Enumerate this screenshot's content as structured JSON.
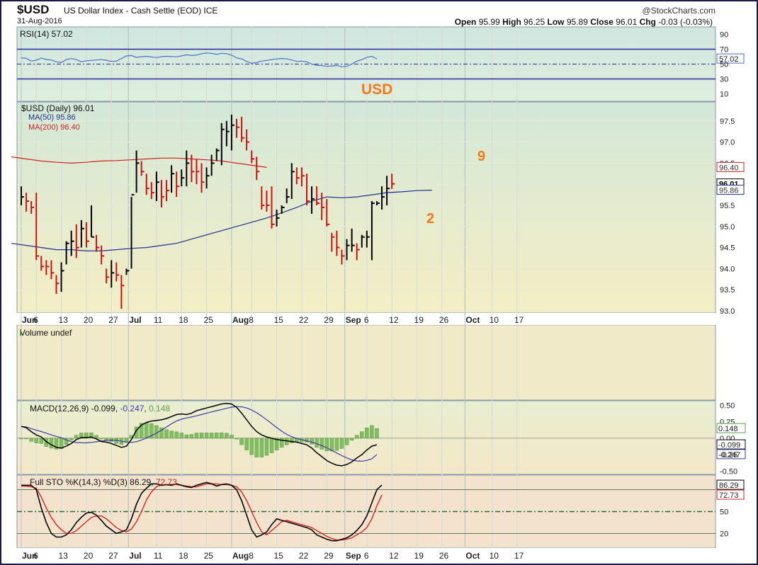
{
  "header": {
    "symbol": "$USD",
    "name": "US Dollar Index - Cash Settle (EOD) ICE",
    "date": "31-Aug-2016",
    "watermark": "@StockCharts.com",
    "open_label": "Open",
    "open": "95.99",
    "high_label": "High",
    "high": "96.25",
    "low_label": "Low",
    "low": "95.89",
    "close_label": "Close",
    "close": "96.01",
    "chg_label": "Chg",
    "chg": "-0.03 (-0.03%)"
  },
  "colors": {
    "up_bar": "#000000",
    "down_bar": "#cc1111",
    "ma50": "#1f2f8f",
    "ma200": "#cc2222",
    "rsi_line": "#4a6fc8",
    "annotation": "#f07a1a",
    "hist": "#7fbf5f",
    "frame": "#1a1a4a"
  },
  "chart_data": [
    {
      "type": "line",
      "title": "RSI(14) 57.02",
      "series": [
        {
          "name": "RSI(14)",
          "last": "57.02",
          "values": [
            58.5,
            57.8,
            54.0,
            55.2,
            58.0,
            56.2,
            55.4,
            53.0,
            52.0,
            56.0,
            57.5,
            56.0,
            53.0,
            54.5,
            55.0,
            55.5,
            56.0,
            55.2,
            53.5,
            54.0,
            57.5,
            61.0,
            61.5,
            59.0,
            60.0,
            60.5,
            59.5,
            58.8,
            60.0,
            60.5,
            60.2,
            59.8,
            61.0,
            62.5,
            61.5,
            62.0,
            64.0,
            65.0,
            64.5,
            63.0,
            64.5,
            64.0,
            62.0,
            58.5,
            57.0,
            53.5,
            51.0,
            52.0,
            54.0,
            55.0,
            56.0,
            57.0,
            57.5,
            57.0,
            55.5,
            53.5,
            54.0,
            53.0,
            50.0,
            48.5,
            48.0,
            47.0,
            47.5,
            48.0,
            46.5,
            47.0,
            50.0,
            54.0,
            56.0,
            59.0,
            60.5,
            57.02
          ]
        }
      ],
      "reference_lines": [
        70,
        50,
        30
      ],
      "y_ticks": [
        "90",
        "70",
        "57.02",
        "50",
        "30",
        "10"
      ],
      "ylim": [
        0,
        100
      ]
    },
    {
      "type": "bar",
      "title": "$USD (Daily) 96.01",
      "annotations": [
        "USD",
        "9",
        "2"
      ],
      "x_ticks": [
        "Jun",
        "6",
        "13",
        "20",
        "27",
        "Jul",
        "11",
        "18",
        "25",
        "Aug",
        "8",
        "15",
        "22",
        "29",
        "Sep",
        "6",
        "12",
        "19",
        "26",
        "Oct",
        "10",
        "17"
      ],
      "y_ticks": [
        "97.5",
        "97.0",
        "96.5",
        "96.0",
        "95.5",
        "95.0",
        "94.5",
        "94.0",
        "93.5",
        "93.0"
      ],
      "ylim": [
        92.95,
        97.95
      ],
      "series": [
        {
          "name": "MA(50) 95.86",
          "values": [
            94.6,
            94.55,
            94.5,
            94.45,
            94.45,
            94.42,
            94.42,
            94.45,
            94.48,
            94.5,
            94.55,
            94.6,
            94.7,
            94.8,
            94.9,
            95.0,
            95.1,
            95.2,
            95.32,
            95.45,
            95.6,
            95.7,
            95.68,
            95.7,
            95.75,
            95.8,
            95.82,
            95.85,
            95.86
          ]
        },
        {
          "name": "MA(200) 96.40",
          "values": [
            96.65,
            96.6,
            96.55,
            96.52,
            96.5,
            96.52,
            96.55,
            96.56,
            96.58,
            96.6,
            96.62,
            96.62,
            96.6,
            96.58,
            96.55,
            96.5,
            96.45,
            96.4
          ]
        },
        {
          "name": "$USD (Daily)",
          "ohlc_hlc": [
            [
              95.95,
              95.5,
              95.7,
              1
            ],
            [
              95.8,
              95.35,
              95.6,
              0
            ],
            [
              95.6,
              95.3,
              95.45,
              0
            ],
            [
              95.8,
              94.2,
              94.3,
              0
            ],
            [
              94.3,
              93.95,
              94.05,
              0
            ],
            [
              94.2,
              93.85,
              94.05,
              0
            ],
            [
              94.2,
              93.75,
              93.9,
              0
            ],
            [
              93.85,
              93.4,
              93.65,
              0
            ],
            [
              94.15,
              93.45,
              93.95,
              1
            ],
            [
              94.65,
              94.1,
              94.6,
              1
            ],
            [
              94.9,
              94.3,
              94.65,
              1
            ],
            [
              95.05,
              94.25,
              94.5,
              0
            ],
            [
              95.15,
              94.5,
              94.95,
              1
            ],
            [
              95.1,
              94.5,
              94.65,
              0
            ],
            [
              95.5,
              94.75,
              94.75,
              1
            ],
            [
              94.8,
              94.4,
              94.5,
              0
            ],
            [
              94.55,
              94.1,
              94.3,
              0
            ],
            [
              94.0,
              93.65,
              93.8,
              0
            ],
            [
              94.2,
              93.55,
              93.9,
              1
            ],
            [
              94.15,
              93.7,
              93.85,
              0
            ],
            [
              93.85,
              93.05,
              93.6,
              0
            ],
            [
              94.0,
              93.85,
              93.95,
              1
            ],
            [
              95.7,
              94.0,
              95.75,
              1
            ],
            [
              96.8,
              95.8,
              96.5,
              1
            ],
            [
              96.55,
              96.2,
              96.3,
              0
            ],
            [
              96.25,
              95.75,
              95.9,
              0
            ],
            [
              96.05,
              95.65,
              95.8,
              0
            ],
            [
              96.3,
              95.6,
              96.05,
              1
            ],
            [
              96.1,
              95.45,
              95.7,
              0
            ],
            [
              96.1,
              95.6,
              95.85,
              0
            ],
            [
              96.45,
              95.8,
              96.25,
              1
            ],
            [
              96.3,
              95.7,
              95.95,
              0
            ],
            [
              96.35,
              95.95,
              96.15,
              1
            ],
            [
              96.8,
              95.95,
              96.5,
              1
            ],
            [
              96.7,
              96.05,
              96.3,
              0
            ],
            [
              96.6,
              96.0,
              96.3,
              0
            ],
            [
              96.5,
              95.8,
              96.05,
              0
            ],
            [
              96.4,
              95.9,
              96.2,
              1
            ],
            [
              96.7,
              96.2,
              96.5,
              1
            ],
            [
              96.85,
              96.55,
              96.8,
              1
            ],
            [
              97.45,
              96.45,
              97.3,
              1
            ],
            [
              97.5,
              96.9,
              97.25,
              1
            ],
            [
              97.65,
              96.8,
              97.4,
              1
            ],
            [
              97.55,
              97.1,
              97.35,
              0
            ],
            [
              97.6,
              97.0,
              97.1,
              0
            ],
            [
              97.3,
              96.8,
              97.0,
              0
            ],
            [
              96.8,
              96.5,
              96.6,
              0
            ],
            [
              96.65,
              96.1,
              96.3,
              0
            ],
            [
              95.95,
              95.4,
              95.5,
              0
            ],
            [
              95.85,
              95.35,
              95.5,
              0
            ],
            [
              95.95,
              94.95,
              95.05,
              0
            ],
            [
              95.4,
              95.0,
              95.2,
              1
            ],
            [
              95.5,
              95.3,
              95.45,
              1
            ],
            [
              95.9,
              95.55,
              95.7,
              1
            ],
            [
              96.5,
              95.65,
              96.3,
              1
            ],
            [
              96.4,
              96.0,
              96.15,
              0
            ],
            [
              96.4,
              95.95,
              96.2,
              0
            ],
            [
              96.25,
              95.5,
              95.6,
              0
            ],
            [
              95.95,
              95.3,
              95.65,
              1
            ],
            [
              95.95,
              95.5,
              95.55,
              0
            ],
            [
              95.8,
              95.15,
              95.45,
              0
            ],
            [
              95.65,
              95.0,
              95.05,
              0
            ],
            [
              94.85,
              94.4,
              94.75,
              0
            ],
            [
              94.9,
              94.3,
              94.5,
              0
            ],
            [
              94.45,
              94.1,
              94.3,
              0
            ],
            [
              94.7,
              94.2,
              94.55,
              1
            ],
            [
              94.95,
              94.4,
              94.55,
              1
            ],
            [
              94.6,
              94.2,
              94.45,
              0
            ],
            [
              94.8,
              94.5,
              94.75,
              1
            ],
            [
              94.9,
              94.5,
              94.75,
              1
            ],
            [
              95.6,
              94.2,
              95.55,
              1
            ],
            [
              95.6,
              95.5,
              95.55,
              1
            ],
            [
              95.95,
              95.4,
              95.7,
              1
            ],
            [
              96.2,
              95.5,
              95.9,
              1
            ],
            [
              96.25,
              95.89,
              96.01,
              0
            ]
          ]
        }
      ]
    },
    {
      "type": "bar",
      "title": "Volume undef"
    },
    {
      "type": "line",
      "title": "MACD(12,26,9) -0.099, -0.247, 0.148",
      "series": [
        {
          "name": "MACD(12,26,9)",
          "last": "-0.099"
        },
        {
          "name": "signal",
          "last": "-0.247"
        },
        {
          "name": "histogram",
          "last": "0.148"
        }
      ],
      "y_ticks": [
        "0.50",
        "0.25",
        "0.148",
        "0.00",
        "-0.099",
        "-0.247",
        "-0.25",
        "-0.50"
      ],
      "ylim": [
        -0.55,
        0.57
      ]
    },
    {
      "type": "line",
      "title": "Full STO %K(14,3) %D(3) 86.29, 72.73",
      "series": [
        {
          "name": "%K(14,3)",
          "last": "86.29",
          "values": [
            86,
            86,
            86,
            80,
            55,
            35,
            20,
            15,
            15,
            18,
            25,
            35,
            42,
            48,
            49,
            45,
            38,
            30,
            25,
            20,
            22,
            25,
            40,
            60,
            75,
            82,
            88,
            88,
            86,
            87,
            86,
            88,
            86,
            84,
            83,
            86,
            88,
            90,
            88,
            85,
            87,
            88,
            86,
            80,
            65,
            45,
            25,
            15,
            18,
            22,
            32,
            40,
            38,
            36,
            34,
            32,
            30,
            28,
            25,
            18,
            15,
            12,
            10,
            10,
            12,
            14,
            18,
            24,
            32,
            44,
            62,
            80,
            86.29
          ]
        },
        {
          "name": "%D(3)",
          "last": "72.73",
          "values": [
            85,
            85,
            84,
            82,
            70,
            55,
            42,
            32,
            25,
            20,
            20,
            24,
            30,
            36,
            42,
            44,
            44,
            40,
            34,
            28,
            24,
            22,
            26,
            36,
            50,
            66,
            77,
            84,
            87,
            87,
            87,
            87,
            86,
            85,
            84,
            84,
            86,
            88,
            88,
            88,
            87,
            87,
            86,
            84,
            77,
            65,
            50,
            35,
            22,
            18,
            24,
            30,
            36,
            38,
            36,
            34,
            32,
            30,
            28,
            24,
            20,
            16,
            13,
            11,
            11,
            12,
            14,
            18,
            22,
            28,
            40,
            58,
            72.73
          ]
        }
      ],
      "reference_lines": [
        80,
        50,
        20
      ],
      "y_ticks": [
        "86.29",
        "72.73",
        "50",
        "20"
      ],
      "ylim": [
        0,
        100
      ]
    }
  ],
  "macd_panel": {
    "title_start": "MACD(12,26,9)",
    "v1": "-0.099",
    "v2": "-0.247",
    "v3": "0.148"
  },
  "sto_panel": {
    "title_start": "Full STO %K(14,3) %D(3)",
    "k": "86.29",
    "d": "72.73"
  },
  "legend_main": {
    "title": "$USD (Daily) 96.01",
    "ma50": "MA(50) 95.86",
    "ma200": "MA(200) 96.40"
  }
}
